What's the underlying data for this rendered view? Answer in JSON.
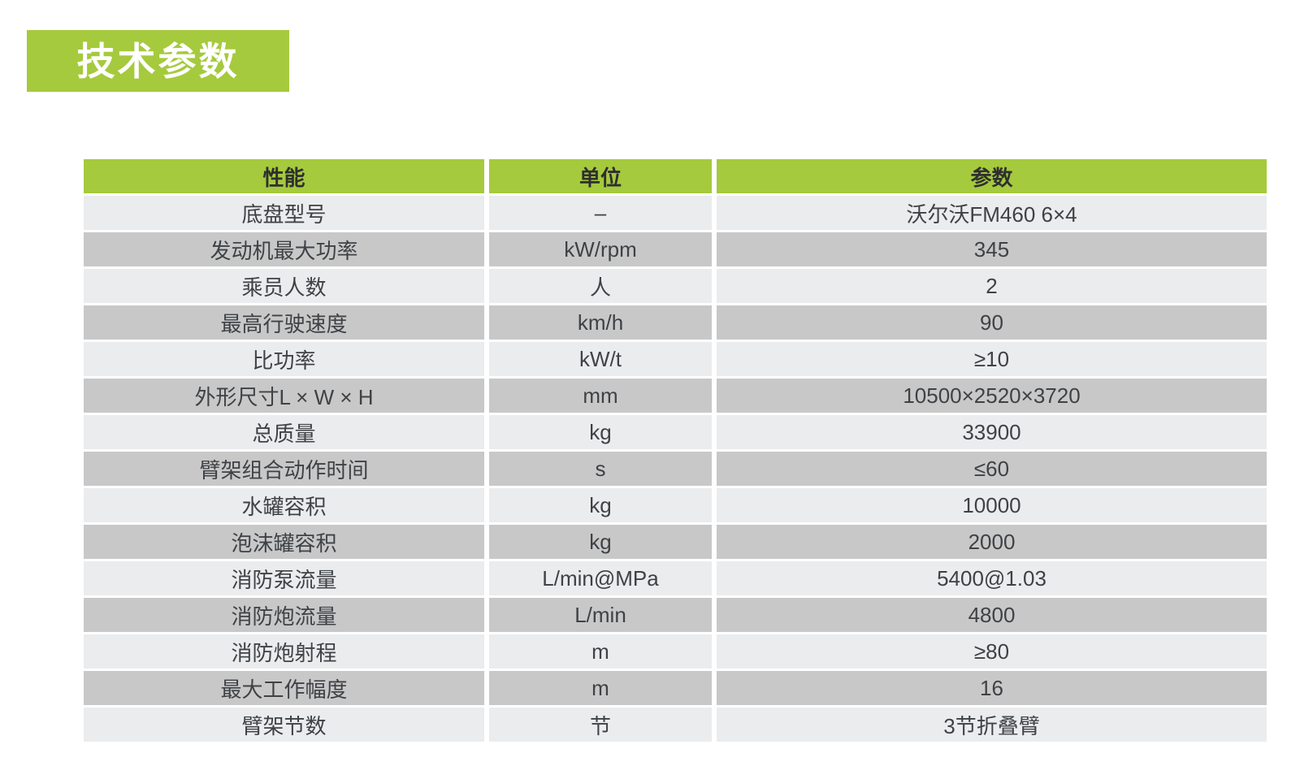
{
  "section": {
    "title": "技术参数"
  },
  "colors": {
    "accent_green": "#a5ca3d",
    "row_light": "#ebecee",
    "row_dark": "#c8c8c9",
    "badge_text": "#ffffff",
    "cell_text": "#3f4245"
  },
  "table": {
    "columns": [
      {
        "label": "性能"
      },
      {
        "label": "单位"
      },
      {
        "label": "参数"
      }
    ],
    "rows": [
      {
        "name": "底盘型号",
        "unit": "–",
        "value": "沃尔沃FM460 6×4"
      },
      {
        "name": "发动机最大功率",
        "unit": "kW/rpm",
        "value": "345"
      },
      {
        "name": "乘员人数",
        "unit": "人",
        "value": "2"
      },
      {
        "name": "最高行驶速度",
        "unit": "km/h",
        "value": "90"
      },
      {
        "name": "比功率",
        "unit": "kW/t",
        "value": "≥10"
      },
      {
        "name": "外形尺寸L × W × H",
        "unit": "mm",
        "value": "10500×2520×3720"
      },
      {
        "name": "总质量",
        "unit": "kg",
        "value": "33900"
      },
      {
        "name": "臂架组合动作时间",
        "unit": "s",
        "value": "≤60"
      },
      {
        "name": "水罐容积",
        "unit": "kg",
        "value": "10000"
      },
      {
        "name": "泡沫罐容积",
        "unit": "kg",
        "value": "2000"
      },
      {
        "name": "消防泵流量",
        "unit": "L/min@MPa",
        "value": "5400@1.03"
      },
      {
        "name": "消防炮流量",
        "unit": "L/min",
        "value": "4800"
      },
      {
        "name": "消防炮射程",
        "unit": "m",
        "value": "≥80"
      },
      {
        "name": "最大工作幅度",
        "unit": "m",
        "value": "16"
      },
      {
        "name": "臂架节数",
        "unit": "节",
        "value": "3节折叠臂"
      }
    ]
  }
}
